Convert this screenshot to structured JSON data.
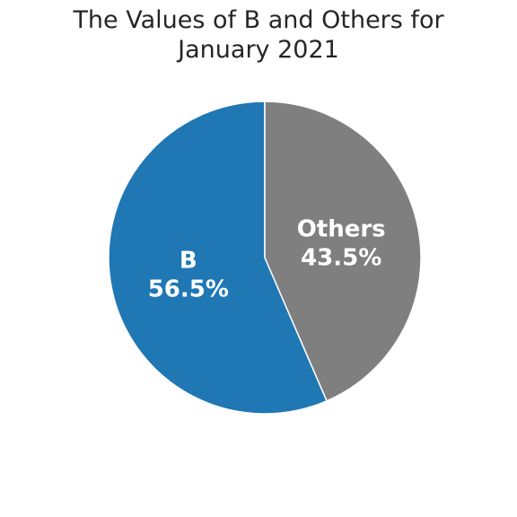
{
  "chart_data": {
    "type": "pie",
    "title": "The Values of B and Others for\nJanuary 2021",
    "slices": [
      {
        "name": "B",
        "value": 56.5,
        "percent_label": "56.5%",
        "color": "#1f77b4"
      },
      {
        "name": "Others",
        "value": 43.5,
        "percent_label": "43.5%",
        "color": "#7f7f7f"
      }
    ],
    "start_angle": "top (12 o'clock)",
    "direction": "counterclockwise",
    "legend": "none"
  }
}
